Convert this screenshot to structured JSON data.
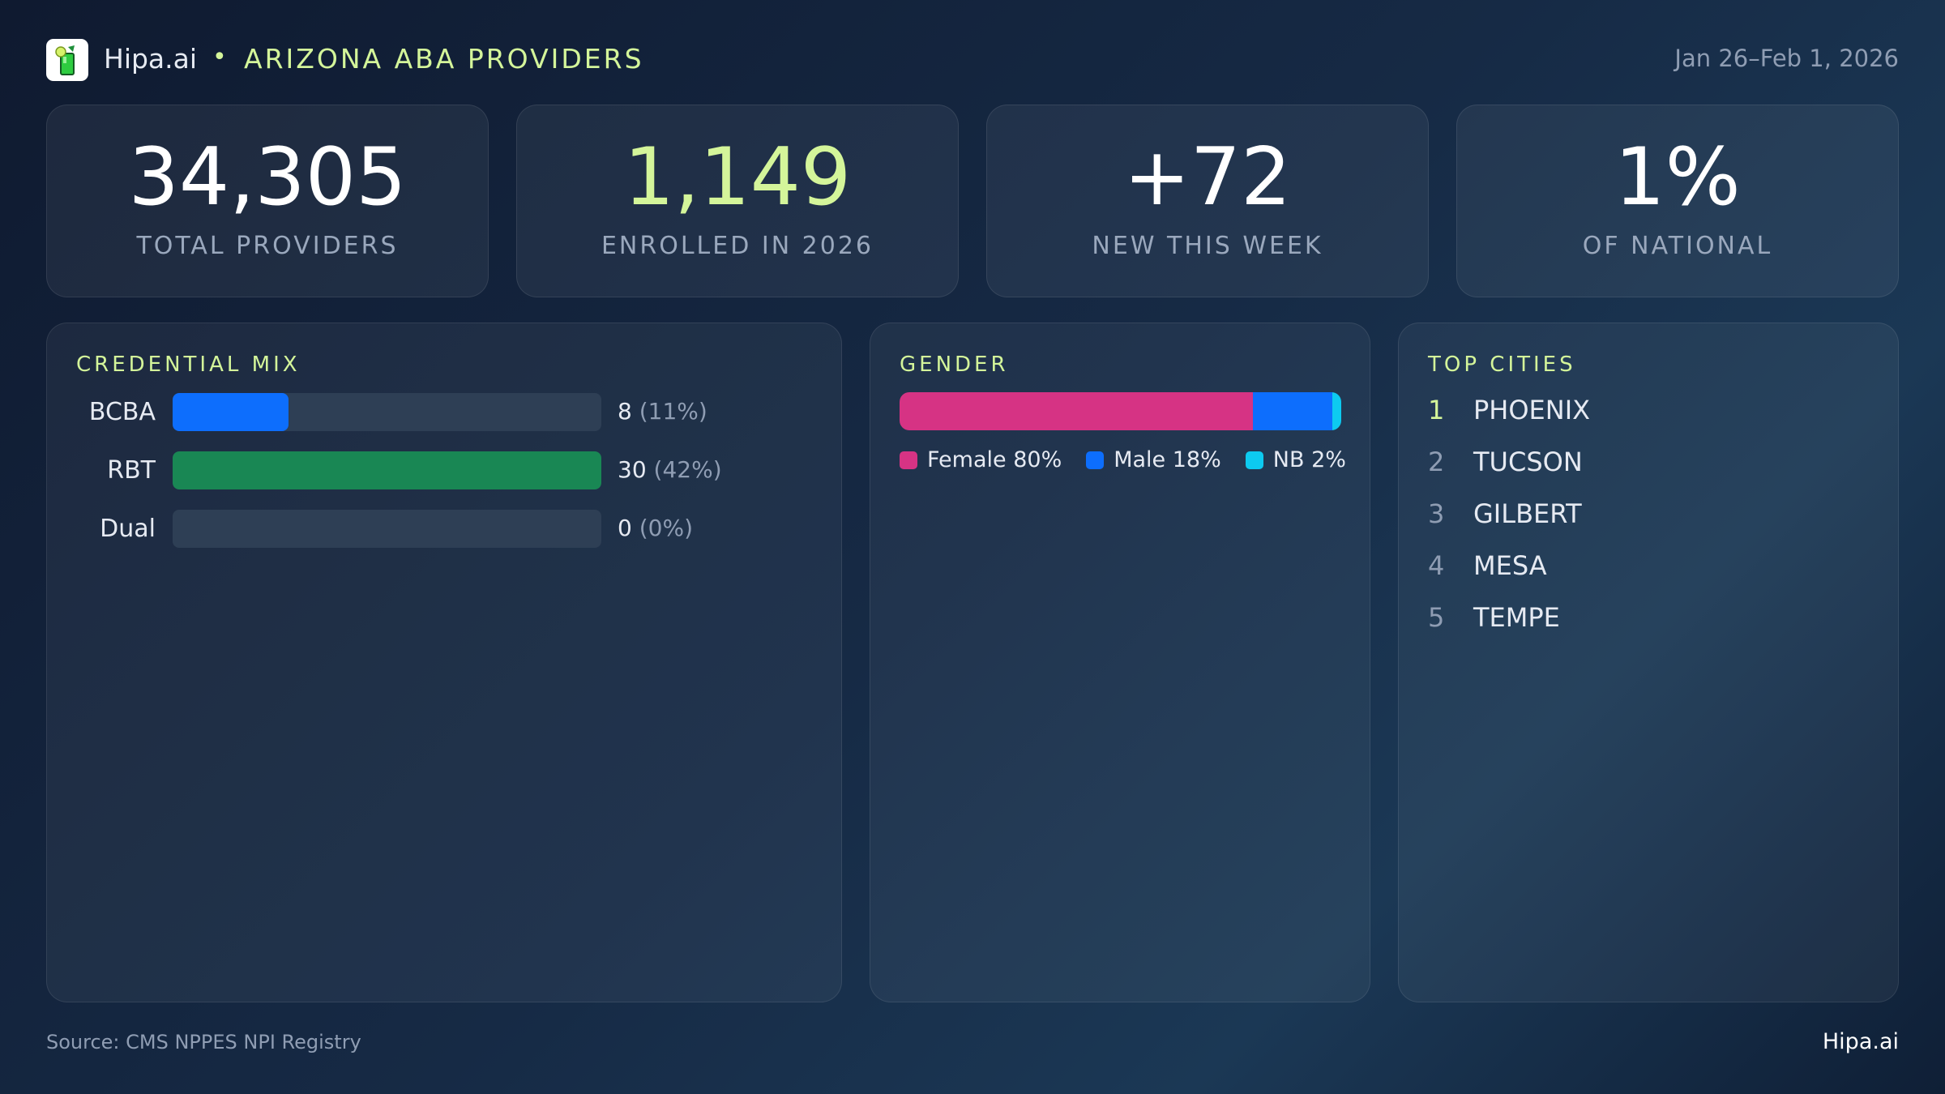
{
  "header": {
    "brand": "Hipa.ai",
    "separator": "•",
    "title": "ARIZONA ABA PROVIDERS",
    "date_range": "Jan 26–Feb 1, 2026",
    "logo_icon": "mojito-glass-icon"
  },
  "kpis": [
    {
      "value": "34,305",
      "label": "TOTAL PROVIDERS",
      "color": "#ffffff"
    },
    {
      "value": "1,149",
      "label": "ENROLLED IN 2026",
      "color": "#d4f59a"
    },
    {
      "value": "+72",
      "label": "NEW THIS WEEK",
      "color": "#ffffff"
    },
    {
      "value": "1%",
      "label": "OF NATIONAL",
      "color": "#ffffff"
    }
  ],
  "credential_mix": {
    "title": "CREDENTIAL MIX",
    "items": [
      {
        "label": "BCBA",
        "count": "8",
        "pct": "(11%)",
        "fill_fraction": 0.27,
        "color": "#0d6efd"
      },
      {
        "label": "RBT",
        "count": "30",
        "pct": "(42%)",
        "fill_fraction": 1.0,
        "color": "#198754"
      },
      {
        "label": "Dual",
        "count": "0",
        "pct": "(0%)",
        "fill_fraction": 0,
        "color": "#6c757d"
      }
    ]
  },
  "gender": {
    "title": "GENDER",
    "segments": [
      {
        "label": "Female 80%",
        "value": 80,
        "color": "#d63384"
      },
      {
        "label": "Male 18%",
        "value": 18,
        "color": "#0d6efd"
      },
      {
        "label": "NB 2%",
        "value": 2,
        "color": "#0dcaf0"
      }
    ]
  },
  "top_cities": {
    "title": "TOP CITIES",
    "items": [
      {
        "rank": "1",
        "name": "PHOENIX"
      },
      {
        "rank": "2",
        "name": "TUCSON"
      },
      {
        "rank": "3",
        "name": "GILBERT"
      },
      {
        "rank": "4",
        "name": "MESA"
      },
      {
        "rank": "5",
        "name": "TEMPE"
      }
    ]
  },
  "footer": {
    "source": "Source: CMS NPPES NPI Registry",
    "brand": "Hipa.ai"
  }
}
